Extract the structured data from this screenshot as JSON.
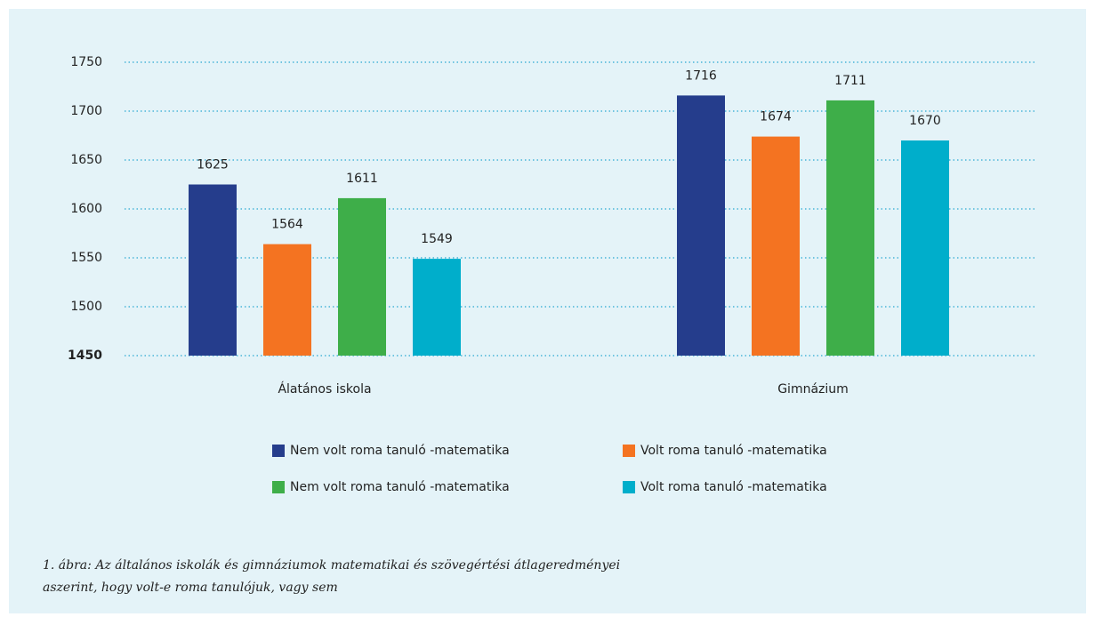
{
  "chart_data": {
    "type": "bar",
    "categories": [
      "Álatános iskola",
      "Gimnázium"
    ],
    "series": [
      {
        "name": "Nem volt roma tanuló -matematika",
        "color": "#253d8c",
        "values": [
          1625,
          1716
        ]
      },
      {
        "name": "Volt roma tanuló -matematika",
        "color": "#f47321",
        "values": [
          1564,
          1674
        ]
      },
      {
        "name": "Nem volt roma tanuló -matematika",
        "color": "#3eae49",
        "values": [
          1611,
          1711
        ]
      },
      {
        "name": "Volt roma tanuló -matematika",
        "color": "#00aecb",
        "values": [
          1549,
          1670
        ]
      }
    ],
    "ylim": [
      1450,
      1750
    ],
    "yticks": [
      1450,
      1500,
      1550,
      1600,
      1650,
      1700,
      1750
    ],
    "grid": true,
    "caption": [
      "1. ábra: Az általános iskolák és gimnáziumok matematikai és szövegértési átlageredményei",
      "aszerint, hogy volt-e roma tanulójuk, vagy sem"
    ]
  }
}
